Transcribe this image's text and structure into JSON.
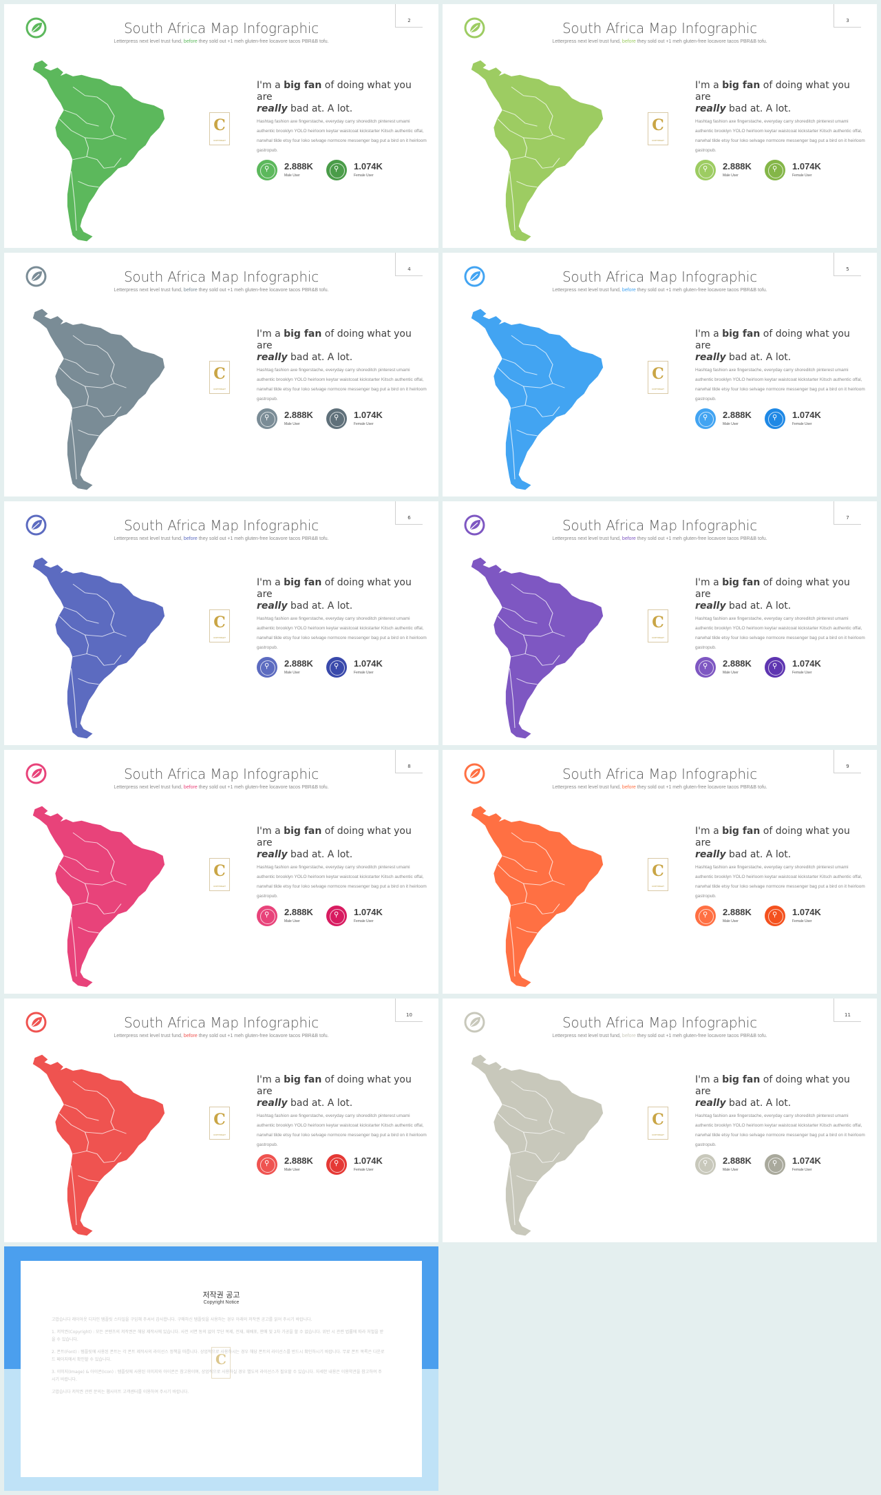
{
  "slides": [
    {
      "page": "2",
      "accent": "#5cb85c",
      "accent_dark": "#4a9c49",
      "map": "#5cb85c",
      "highlight": "#5cb85c"
    },
    {
      "page": "3",
      "accent": "#9dcc62",
      "accent_dark": "#84b648",
      "map": "#9dcc62",
      "highlight": "#9dcc62"
    },
    {
      "page": "4",
      "accent": "#7a8c96",
      "accent_dark": "#5f707a",
      "map": "#7a8c96",
      "highlight": "#7a8c96"
    },
    {
      "page": "5",
      "accent": "#42a4f2",
      "accent_dark": "#1e88e5",
      "map": "#42a4f2",
      "highlight": "#42a4f2"
    },
    {
      "page": "6",
      "accent": "#5c6bc0",
      "accent_dark": "#3949ab",
      "map": "#5c6bc0",
      "highlight": "#5c6bc0"
    },
    {
      "page": "7",
      "accent": "#7e57c2",
      "accent_dark": "#5e35b1",
      "map": "#7e57c2",
      "highlight": "#7e57c2"
    },
    {
      "page": "8",
      "accent": "#e8437a",
      "accent_dark": "#d81b60",
      "map": "#e8437a",
      "highlight": "#e8437a"
    },
    {
      "page": "9",
      "accent": "#ff7043",
      "accent_dark": "#f4511e",
      "map": "#ff7043",
      "highlight": "#ff7043"
    },
    {
      "page": "10",
      "accent": "#ef5350",
      "accent_dark": "#e53935",
      "map": "#ef5350",
      "highlight": "#ef5350"
    },
    {
      "page": "11",
      "accent": "#c8c8bb",
      "accent_dark": "#a9a99c",
      "map": "#c8c8bb",
      "highlight": "#c8c8bb"
    }
  ],
  "common": {
    "title": "South Africa Map Infographic",
    "subtitle_before": "Letterpress next level trust fund, ",
    "subtitle_highlight": "before",
    "subtitle_after": " they sold out +1 meh gluten-free locavore tacos PBR&B tofu.",
    "heading_pre": "I'm a ",
    "heading_bold": "big fan",
    "heading_mid": " of doing what you are ",
    "heading_italic": "really",
    "heading_end": " bad at. A lot.",
    "body": "Hashtag fashion axe fingerstache, everyday carry shoreditch pinterest umami authentic brooklyn YOLO heirloom keytar waistcoat kickstarter Kitsch authentic offal, narwhal tilde etsy four loko selvage normcore messenger bag put a bird on it heirloom gastropub.",
    "stat1_value": "2.888K",
    "stat1_label": "Male User",
    "stat2_value": "1.074K",
    "stat2_label": "Female User",
    "badge_letter": "C",
    "badge_text": "COPYRIGHT"
  },
  "copyright": {
    "title": "저작권 공고",
    "subtitle": "Copyright Notice",
    "paragraphs": [
      "고맙습니다 레이아웃 디자인 템플릿 스타일을 구입해 주셔서 감사합니다. 구매하신 템플릿을 사용하는 경우 아래의 저작권 공고를 읽어 주시기 바랍니다.",
      "1. 저작권(Copyright) : 모든 콘텐츠의 저작권은 해당 제작사에 있습니다. 사전 서면 동의 없이 무단 복제, 전재, 재배포, 판매 및 2차 가공을 할 수 없습니다. 위반 시 관련 법률에 따라 처벌을 받을 수 있습니다.",
      "2. 폰트(Font) : 템플릿에 사용된 폰트는 각 폰트 제작사의 라이선스 정책을 따릅니다. 상업적으로 사용하시는 경우 해당 폰트의 라이선스를 반드시 확인하시기 바랍니다. 무료 폰트 목록은 다운로드 페이지에서 확인할 수 있습니다.",
      "3. 이미지(Image) & 아이콘(Icon) : 템플릿에 사용된 이미지와 아이콘은 참고용이며, 상업적으로 사용하실 경우 별도의 라이선스가 필요할 수 있습니다. 자세한 내용은 이용약관을 참고하여 주시기 바랍니다.",
      "고맙습니다 저작권 관련 문의는 웹사이트 고객센터를 이용하여 주시기 바랍니다."
    ]
  }
}
